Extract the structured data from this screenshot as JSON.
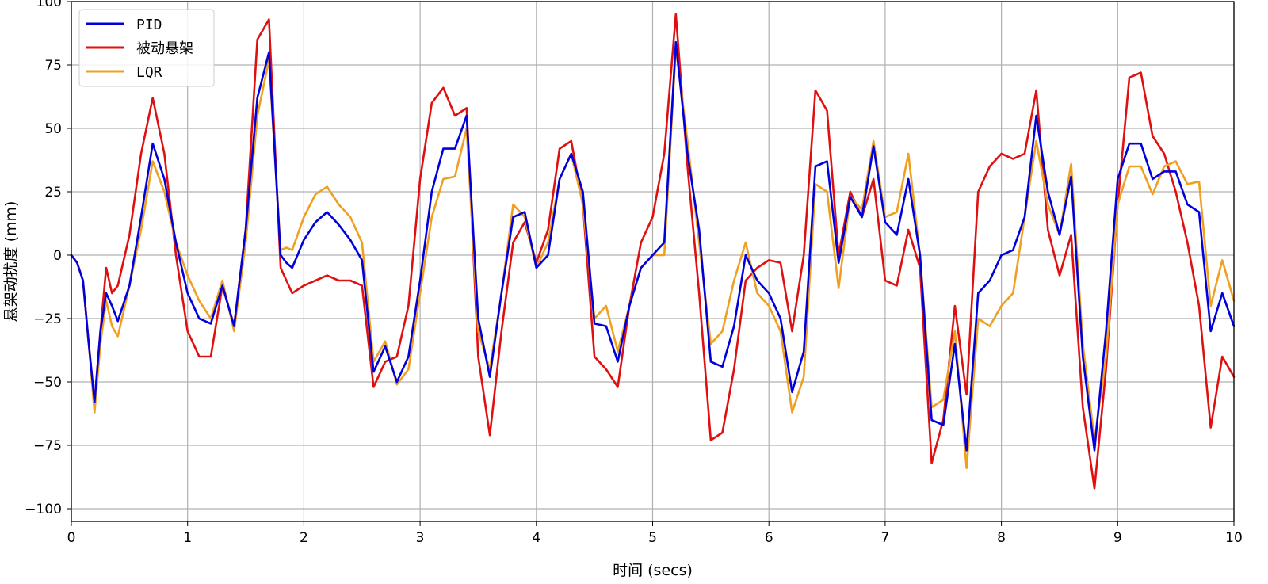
{
  "chart_data": {
    "type": "line",
    "title": "",
    "xlabel": "时间 (secs)",
    "ylabel": "悬架动扰度 (mm)",
    "xlim": [
      0,
      10
    ],
    "ylim": [
      -105,
      100
    ],
    "xticks": [
      0,
      1,
      2,
      3,
      4,
      5,
      6,
      7,
      8,
      9,
      10
    ],
    "yticks": [
      -100,
      -75,
      -50,
      -25,
      0,
      25,
      50,
      75,
      100
    ],
    "grid": true,
    "legend_position": "top-left",
    "series": [
      {
        "name": "PID",
        "color": "#0000dd",
        "x": [
          0,
          0.05,
          0.1,
          0.15,
          0.2,
          0.25,
          0.3,
          0.35,
          0.4,
          0.5,
          0.6,
          0.7,
          0.8,
          0.9,
          1.0,
          1.1,
          1.2,
          1.3,
          1.4,
          1.5,
          1.6,
          1.7,
          1.8,
          1.85,
          1.9,
          2.0,
          2.1,
          2.2,
          2.3,
          2.4,
          2.5,
          2.6,
          2.7,
          2.8,
          2.9,
          3.0,
          3.1,
          3.2,
          3.3,
          3.4,
          3.5,
          3.6,
          3.7,
          3.8,
          3.9,
          4.0,
          4.1,
          4.2,
          4.3,
          4.4,
          4.5,
          4.6,
          4.7,
          4.8,
          4.9,
          5.0,
          5.1,
          5.2,
          5.3,
          5.4,
          5.5,
          5.6,
          5.7,
          5.8,
          5.9,
          6.0,
          6.1,
          6.2,
          6.3,
          6.4,
          6.5,
          6.6,
          6.7,
          6.8,
          6.9,
          7.0,
          7.1,
          7.2,
          7.3,
          7.4,
          7.5,
          7.6,
          7.7,
          7.8,
          7.9,
          8.0,
          8.1,
          8.2,
          8.3,
          8.4,
          8.5,
          8.6,
          8.7,
          8.8,
          8.9,
          9.0,
          9.1,
          9.2,
          9.3,
          9.4,
          9.5,
          9.6,
          9.7,
          9.8,
          9.9,
          10.0
        ],
        "y": [
          0,
          -3,
          -10,
          -35,
          -58,
          -30,
          -15,
          -20,
          -26,
          -12,
          15,
          44,
          30,
          5,
          -15,
          -25,
          -27,
          -12,
          -28,
          10,
          62,
          80,
          0,
          -3,
          -5,
          6,
          13,
          17,
          12,
          6,
          -2,
          -46,
          -36,
          -50,
          -40,
          -10,
          25,
          42,
          42,
          55,
          -25,
          -48,
          -15,
          15,
          17,
          -5,
          0,
          30,
          40,
          25,
          -27,
          -28,
          -42,
          -20,
          -5,
          0,
          5,
          84,
          40,
          10,
          -42,
          -44,
          -28,
          0,
          -10,
          -15,
          -25,
          -54,
          -38,
          35,
          37,
          -3,
          23,
          15,
          43,
          13,
          8,
          30,
          0,
          -65,
          -67,
          -35,
          -77,
          -15,
          -10,
          0,
          2,
          15,
          55,
          25,
          8,
          31,
          -40,
          -77,
          -30,
          30,
          44,
          44,
          30,
          33,
          33,
          20,
          17,
          -30,
          -15,
          -28
        ]
      },
      {
        "name": "被动悬架",
        "color": "#e01010",
        "x": [
          0,
          0.05,
          0.1,
          0.15,
          0.2,
          0.25,
          0.3,
          0.35,
          0.4,
          0.5,
          0.6,
          0.7,
          0.8,
          0.9,
          1.0,
          1.1,
          1.2,
          1.3,
          1.4,
          1.5,
          1.6,
          1.7,
          1.8,
          1.85,
          1.9,
          2.0,
          2.1,
          2.2,
          2.3,
          2.4,
          2.5,
          2.6,
          2.7,
          2.8,
          2.9,
          3.0,
          3.1,
          3.2,
          3.3,
          3.4,
          3.5,
          3.6,
          3.7,
          3.8,
          3.9,
          4.0,
          4.1,
          4.2,
          4.3,
          4.4,
          4.5,
          4.6,
          4.7,
          4.8,
          4.9,
          5.0,
          5.1,
          5.2,
          5.3,
          5.4,
          5.5,
          5.6,
          5.7,
          5.8,
          5.9,
          6.0,
          6.1,
          6.2,
          6.3,
          6.4,
          6.5,
          6.6,
          6.7,
          6.8,
          6.9,
          7.0,
          7.1,
          7.2,
          7.3,
          7.4,
          7.5,
          7.6,
          7.7,
          7.8,
          7.9,
          8.0,
          8.1,
          8.2,
          8.3,
          8.4,
          8.5,
          8.6,
          8.7,
          8.8,
          8.9,
          9.0,
          9.1,
          9.2,
          9.3,
          9.4,
          9.5,
          9.6,
          9.7,
          9.8,
          9.9,
          10.0
        ],
        "y": [
          0,
          -3,
          -10,
          -35,
          -58,
          -30,
          -5,
          -15,
          -12,
          8,
          40,
          62,
          40,
          0,
          -30,
          -40,
          -40,
          -12,
          -28,
          10,
          85,
          93,
          -5,
          -10,
          -15,
          -12,
          -10,
          -8,
          -10,
          -10,
          -12,
          -52,
          -42,
          -40,
          -20,
          30,
          60,
          66,
          55,
          58,
          -40,
          -71,
          -30,
          5,
          13,
          -3,
          10,
          42,
          45,
          20,
          -40,
          -45,
          -52,
          -20,
          5,
          15,
          40,
          95,
          35,
          -15,
          -73,
          -70,
          -45,
          -10,
          -5,
          -2,
          -3,
          -30,
          0,
          65,
          57,
          0,
          25,
          15,
          30,
          -10,
          -12,
          10,
          -5,
          -82,
          -65,
          -20,
          -55,
          25,
          35,
          40,
          38,
          40,
          65,
          10,
          -8,
          8,
          -60,
          -92,
          -45,
          20,
          70,
          72,
          47,
          40,
          25,
          5,
          -20,
          -68,
          -40,
          -48
        ]
      },
      {
        "name": "LQR",
        "color": "#f0a020",
        "x": [
          0,
          0.05,
          0.1,
          0.15,
          0.2,
          0.25,
          0.3,
          0.35,
          0.4,
          0.5,
          0.6,
          0.7,
          0.8,
          0.9,
          1.0,
          1.1,
          1.2,
          1.3,
          1.4,
          1.5,
          1.6,
          1.7,
          1.8,
          1.85,
          1.9,
          2.0,
          2.1,
          2.2,
          2.3,
          2.4,
          2.5,
          2.6,
          2.7,
          2.8,
          2.9,
          3.0,
          3.1,
          3.2,
          3.3,
          3.4,
          3.5,
          3.6,
          3.7,
          3.8,
          3.9,
          4.0,
          4.1,
          4.2,
          4.3,
          4.4,
          4.5,
          4.6,
          4.7,
          4.8,
          4.9,
          5.0,
          5.1,
          5.2,
          5.3,
          5.4,
          5.5,
          5.6,
          5.7,
          5.8,
          5.9,
          6.0,
          6.1,
          6.2,
          6.3,
          6.4,
          6.5,
          6.6,
          6.7,
          6.8,
          6.9,
          7.0,
          7.1,
          7.2,
          7.3,
          7.4,
          7.5,
          7.6,
          7.7,
          7.8,
          7.9,
          8.0,
          8.1,
          8.2,
          8.3,
          8.4,
          8.5,
          8.6,
          8.7,
          8.8,
          8.9,
          9.0,
          9.1,
          9.2,
          9.3,
          9.4,
          9.5,
          9.6,
          9.7,
          9.8,
          9.9,
          10.0
        ],
        "y": [
          0,
          -3,
          -10,
          -35,
          -62,
          -35,
          -18,
          -28,
          -32,
          -12,
          10,
          37,
          25,
          5,
          -8,
          -18,
          -25,
          -10,
          -30,
          5,
          55,
          77,
          2,
          3,
          2,
          15,
          24,
          27,
          20,
          15,
          5,
          -42,
          -34,
          -51,
          -45,
          -15,
          15,
          30,
          31,
          50,
          -30,
          -45,
          -15,
          20,
          15,
          -5,
          5,
          30,
          40,
          20,
          -25,
          -20,
          -38,
          -20,
          -5,
          0,
          0,
          82,
          45,
          5,
          -35,
          -30,
          -10,
          5,
          -15,
          -20,
          -30,
          -62,
          -48,
          28,
          25,
          -13,
          23,
          18,
          45,
          15,
          17,
          40,
          0,
          -60,
          -57,
          -30,
          -84,
          -25,
          -28,
          -20,
          -15,
          15,
          45,
          20,
          8,
          36,
          -35,
          -73,
          -40,
          20,
          35,
          35,
          24,
          35,
          37,
          28,
          29,
          -20,
          -2,
          -18
        ]
      }
    ]
  }
}
